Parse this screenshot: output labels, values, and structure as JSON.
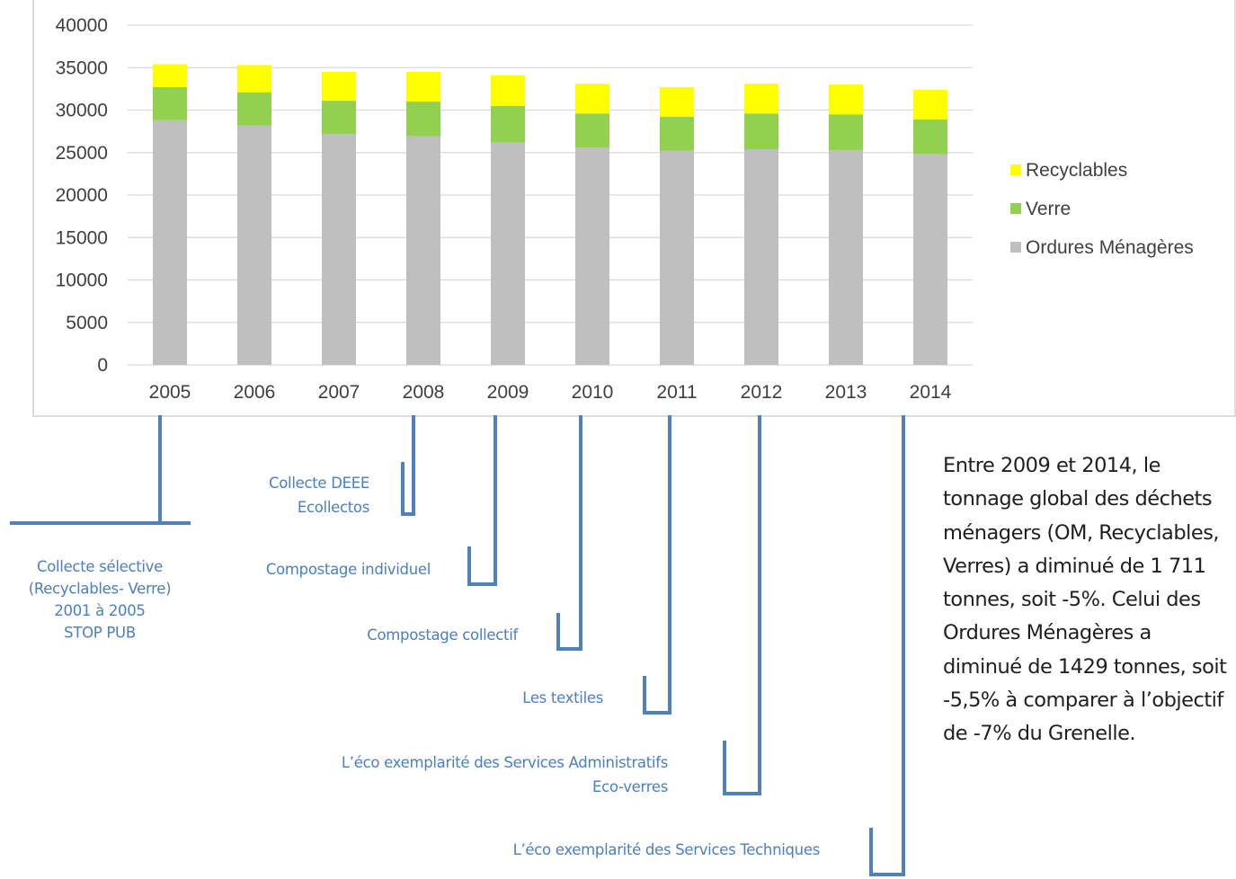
{
  "colors": {
    "recyclables": "#ffff00",
    "verre": "#92d050",
    "ordures": "#bfbfbf",
    "timeline": "#4f81bd",
    "note_text": "#4a7fc1"
  },
  "chart_data": {
    "type": "bar",
    "stacked": true,
    "categories": [
      "2005",
      "2006",
      "2007",
      "2008",
      "2009",
      "2010",
      "2011",
      "2012",
      "2013",
      "2014"
    ],
    "series": [
      {
        "name": "Ordures Ménagères",
        "color": "#bfbfbf",
        "values": [
          28800,
          28200,
          27200,
          26900,
          26200,
          25600,
          25200,
          25400,
          25300,
          24800
        ]
      },
      {
        "name": "Verre",
        "color": "#92d050",
        "values": [
          3900,
          3900,
          3900,
          4100,
          4300,
          4000,
          4000,
          4200,
          4200,
          4100
        ]
      },
      {
        "name": "Recyclables",
        "color": "#ffff00",
        "values": [
          2700,
          3200,
          3400,
          3500,
          3600,
          3500,
          3500,
          3500,
          3500,
          3500
        ]
      }
    ],
    "yticks": [
      "0",
      "5000",
      "10000",
      "15000",
      "20000",
      "25000",
      "30000",
      "35000",
      "40000"
    ],
    "ylim": [
      0,
      40000
    ],
    "grid": true,
    "legend": {
      "position": "right",
      "entries": [
        "Recyclables",
        "Verre",
        "Ordures Ménagères"
      ]
    }
  },
  "annotations": [
    {
      "year": "2005",
      "lines": [
        "Collecte sélective",
        "(Recyclables- Verre)",
        "2001 à 2005",
        "STOP PUB"
      ]
    },
    {
      "year": "2008",
      "lines": [
        "Collecte DEEE",
        "Ecollectos"
      ]
    },
    {
      "year": "2009",
      "lines": [
        "Compostage individuel"
      ]
    },
    {
      "year": "2010",
      "lines": [
        "Compostage collectif"
      ]
    },
    {
      "year": "2011",
      "lines": [
        "Les textiles"
      ]
    },
    {
      "year": "2012",
      "lines": [
        "L’éco exemplarité des Services Administratifs",
        "Eco-verres"
      ]
    },
    {
      "year": "2014",
      "lines": [
        "L’éco exemplarité des Services Techniques"
      ]
    }
  ],
  "summary": "Entre 2009 et 2014, le tonnage global des déchets ménagers (OM, Recyclables, Verres) a diminué de 1 711 tonnes, soit -5%. Celui des Ordures Ménagères a diminué de 1429 tonnes, soit -5,5% à comparer à l’objectif de -7% du Grenelle."
}
